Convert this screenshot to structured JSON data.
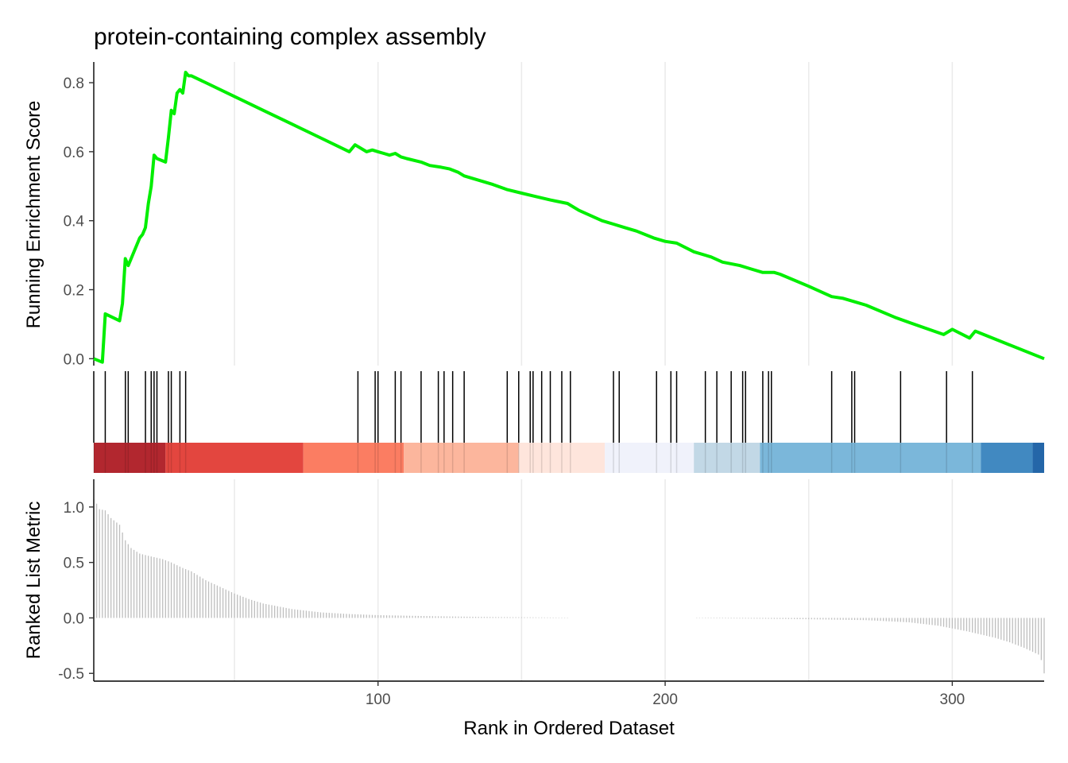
{
  "chart_data": {
    "type": "line",
    "title": "protein-containing complex assembly",
    "xlabel": "Rank in Ordered Dataset",
    "x_ticks": [
      100,
      200,
      300
    ],
    "xlim": [
      1,
      332
    ],
    "colors": {
      "running_score_line": "#00ee00",
      "hit_marks": "#000000",
      "metric_bars": "#bebebe",
      "grid": "#ebebeb"
    },
    "panels": [
      {
        "name": "running-enrichment-score",
        "type": "line",
        "ylabel": "Running Enrichment Score",
        "ylim": [
          -0.02,
          0.86
        ],
        "y_ticks": [
          0.0,
          0.2,
          0.4,
          0.6,
          0.8
        ],
        "y_tick_labels": [
          "0.0",
          "0.2",
          "0.4",
          "0.6",
          "0.8"
        ],
        "x": [
          1,
          4,
          5,
          10,
          11,
          12,
          13,
          17,
          18,
          19,
          20,
          21,
          22,
          23,
          26,
          27,
          28,
          29,
          30,
          31,
          32,
          33,
          34,
          35,
          40,
          50,
          60,
          70,
          80,
          90,
          92,
          96,
          98,
          100,
          102,
          104,
          106,
          108,
          110,
          115,
          118,
          122,
          125,
          128,
          130,
          140,
          145,
          150,
          155,
          160,
          166,
          170,
          178,
          182,
          186,
          190,
          196,
          200,
          204,
          210,
          216,
          220,
          226,
          230,
          234,
          238,
          240,
          250,
          258,
          262,
          266,
          270,
          280,
          285,
          297,
          300,
          306,
          308,
          320,
          332
        ],
        "y": [
          0.0,
          -0.01,
          0.13,
          0.11,
          0.16,
          0.29,
          0.27,
          0.35,
          0.36,
          0.38,
          0.45,
          0.5,
          0.59,
          0.58,
          0.57,
          0.64,
          0.72,
          0.71,
          0.77,
          0.78,
          0.77,
          0.83,
          0.82,
          0.82,
          0.8,
          0.76,
          0.72,
          0.68,
          0.64,
          0.6,
          0.62,
          0.6,
          0.605,
          0.6,
          0.595,
          0.59,
          0.595,
          0.585,
          0.58,
          0.57,
          0.56,
          0.555,
          0.55,
          0.54,
          0.53,
          0.505,
          0.49,
          0.48,
          0.47,
          0.46,
          0.45,
          0.43,
          0.4,
          0.39,
          0.38,
          0.37,
          0.35,
          0.34,
          0.335,
          0.31,
          0.295,
          0.28,
          0.27,
          0.26,
          0.25,
          0.25,
          0.245,
          0.21,
          0.18,
          0.175,
          0.165,
          0.155,
          0.12,
          0.105,
          0.07,
          0.085,
          0.06,
          0.08,
          0.04,
          0.0
        ]
      },
      {
        "name": "gene-hits",
        "type": "rug",
        "hit_ranks": [
          1,
          5,
          12,
          13,
          19,
          21,
          22,
          23,
          27,
          28,
          31,
          33,
          93,
          99,
          100,
          106,
          108,
          115,
          121,
          123,
          126,
          130,
          145,
          149,
          153,
          154,
          157,
          160,
          164,
          167,
          182,
          184,
          197,
          202,
          204,
          214,
          218,
          223,
          227,
          228,
          234,
          236,
          237,
          258,
          265,
          266,
          282,
          298,
          307
        ]
      },
      {
        "name": "rank-color-band",
        "type": "heatmap",
        "segments": [
          {
            "start": 1,
            "end": 26,
            "color": "#b2272f"
          },
          {
            "start": 26,
            "end": 74,
            "color": "#e3463f"
          },
          {
            "start": 74,
            "end": 109,
            "color": "#fb7d62"
          },
          {
            "start": 109,
            "end": 149,
            "color": "#fcb69d"
          },
          {
            "start": 149,
            "end": 179,
            "color": "#fee5dc"
          },
          {
            "start": 179,
            "end": 210,
            "color": "#f0f2fb"
          },
          {
            "start": 210,
            "end": 233,
            "color": "#c2d8e6"
          },
          {
            "start": 233,
            "end": 310,
            "color": "#7bb7da"
          },
          {
            "start": 310,
            "end": 328,
            "color": "#4189c1"
          },
          {
            "start": 328,
            "end": 332,
            "color": "#2466a8"
          }
        ]
      },
      {
        "name": "ranked-list-metric",
        "type": "bar",
        "ylabel": "Ranked List Metric",
        "ylim": [
          -0.57,
          1.25
        ],
        "y_ticks": [
          -0.5,
          0.0,
          0.5,
          1.0
        ],
        "y_tick_labels": [
          "-0.5",
          "0.0",
          "0.5",
          "1.0"
        ],
        "x_range": [
          1,
          332
        ],
        "missing_ranks": [
          166,
          211
        ],
        "anchors": {
          "x": [
            1,
            2,
            3,
            5,
            7,
            10,
            12,
            14,
            17,
            20,
            25,
            28,
            32,
            35,
            40,
            45,
            50,
            55,
            60,
            70,
            80,
            90,
            100,
            120,
            140,
            165,
            211,
            230,
            250,
            270,
            285,
            295,
            305,
            315,
            320,
            325,
            330,
            331,
            332
          ],
          "y": [
            1.07,
            1.03,
            0.98,
            0.97,
            0.9,
            0.84,
            0.7,
            0.63,
            0.58,
            0.56,
            0.53,
            0.5,
            0.45,
            0.42,
            0.34,
            0.28,
            0.22,
            0.17,
            0.13,
            0.08,
            0.05,
            0.035,
            0.025,
            0.015,
            0.008,
            0.003,
            -0.003,
            -0.006,
            -0.012,
            -0.02,
            -0.04,
            -0.07,
            -0.12,
            -0.18,
            -0.22,
            -0.27,
            -0.33,
            -0.38,
            -0.5
          ]
        }
      }
    ]
  }
}
